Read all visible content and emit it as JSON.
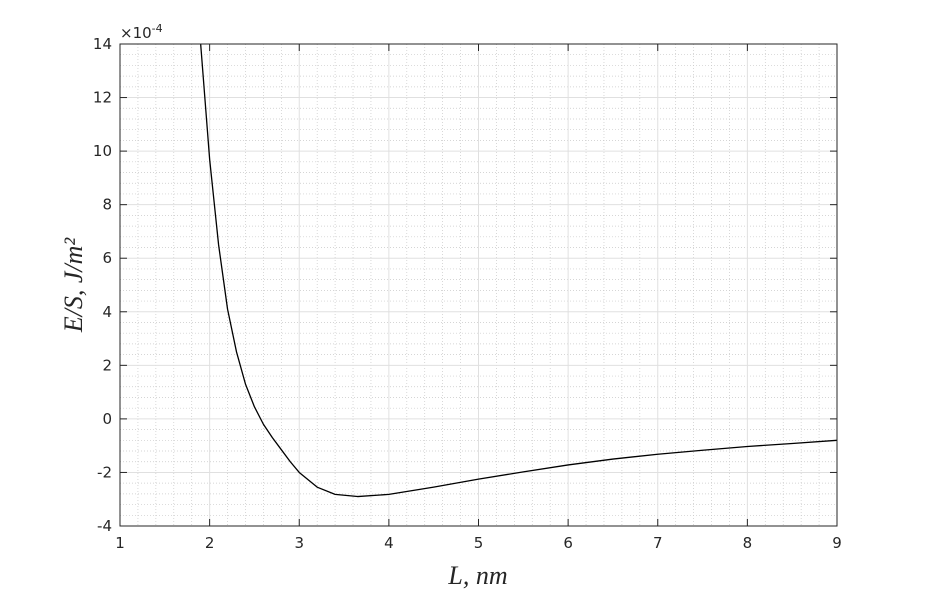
{
  "chart_data": {
    "type": "line",
    "xlabel": "L, nm",
    "ylabel": "E/S, J/m²",
    "y_multiplier": "×10",
    "y_multiplier_exponent": "-4",
    "x": [
      1.9,
      2.0,
      2.1,
      2.2,
      2.3,
      2.4,
      2.5,
      2.6,
      2.7,
      2.8,
      2.9,
      3.0,
      3.2,
      3.4,
      3.65,
      4.0,
      4.5,
      5.0,
      5.5,
      6.0,
      6.5,
      7.0,
      7.5,
      8.0,
      8.5,
      9.0
    ],
    "series": [
      {
        "color": "#000000",
        "values": [
          14,
          9.7,
          6.5,
          4.1,
          2.5,
          1.3,
          0.45,
          -0.2,
          -0.7,
          -1.15,
          -1.6,
          -2.0,
          -2.55,
          -2.82,
          -2.9,
          -2.82,
          -2.55,
          -2.25,
          -1.98,
          -1.72,
          -1.5,
          -1.32,
          -1.17,
          -1.03,
          -0.92,
          -0.8
        ]
      }
    ],
    "xlim": [
      1,
      9
    ],
    "xticks": [
      1,
      2,
      3,
      4,
      5,
      6,
      7,
      8,
      9
    ],
    "ylim": [
      -4,
      14
    ],
    "yticks": [
      -4,
      -2,
      0,
      2,
      4,
      6,
      8,
      10,
      12,
      14
    ],
    "grid": true,
    "minor_grid": true
  }
}
